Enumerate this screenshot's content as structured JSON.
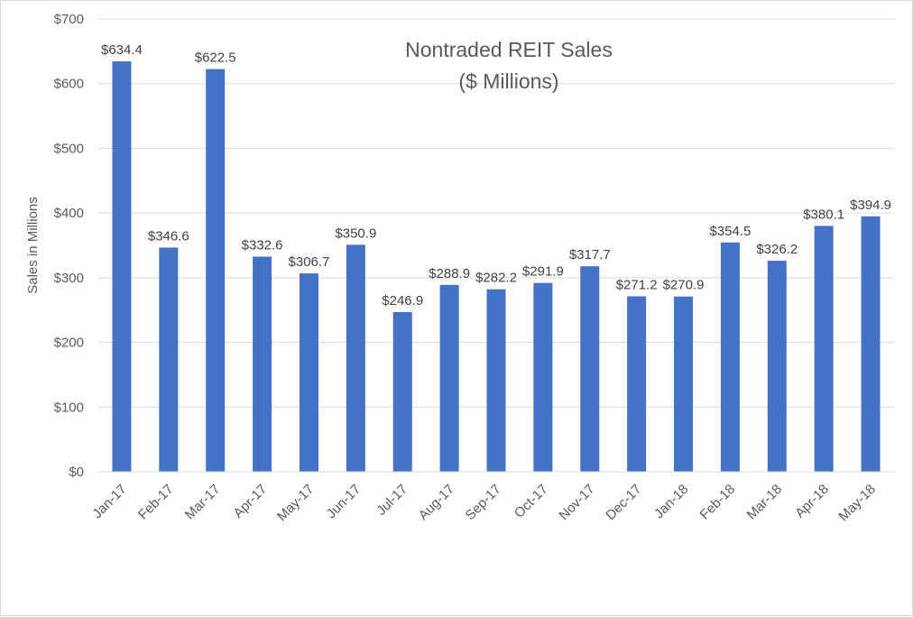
{
  "chart_data": {
    "type": "bar",
    "title_line1": "Nontraded REIT Sales",
    "title_line2": "($ Millions)",
    "xlabel": "",
    "ylabel": "Sales in Millions",
    "ylim": [
      0,
      700
    ],
    "yticks": [
      0,
      100,
      200,
      300,
      400,
      500,
      600,
      700
    ],
    "ytick_labels": [
      "$0",
      "$100",
      "$200",
      "$300",
      "$400",
      "$500",
      "$600",
      "$700"
    ],
    "grid": true,
    "legend": "none",
    "bar_color": "#4472C4",
    "categories": [
      "Jan-17",
      "Feb-17",
      "Mar-17",
      "Apr-17",
      "May-17",
      "Jun-17",
      "Jul-17",
      "Aug-17",
      "Sep-17",
      "Oct-17",
      "Nov-17",
      "Dec-17",
      "Jan-18",
      "Feb-18",
      "Mar-18",
      "Apr-18",
      "May-18"
    ],
    "values": [
      634.4,
      346.6,
      622.5,
      332.6,
      306.7,
      350.9,
      246.9,
      288.9,
      282.2,
      291.9,
      317.7,
      271.2,
      270.9,
      354.5,
      326.2,
      380.1,
      394.9
    ],
    "data_labels": [
      "$634.4",
      "$346.6",
      "$622.5",
      "$332.6",
      "$306.7",
      "$350.9",
      "$246.9",
      "$288.9",
      "$282.2",
      "$291.9",
      "$317.7",
      "$271.2",
      "$270.9",
      "$354.5",
      "$326.2",
      "$380.1",
      "$394.9"
    ]
  }
}
